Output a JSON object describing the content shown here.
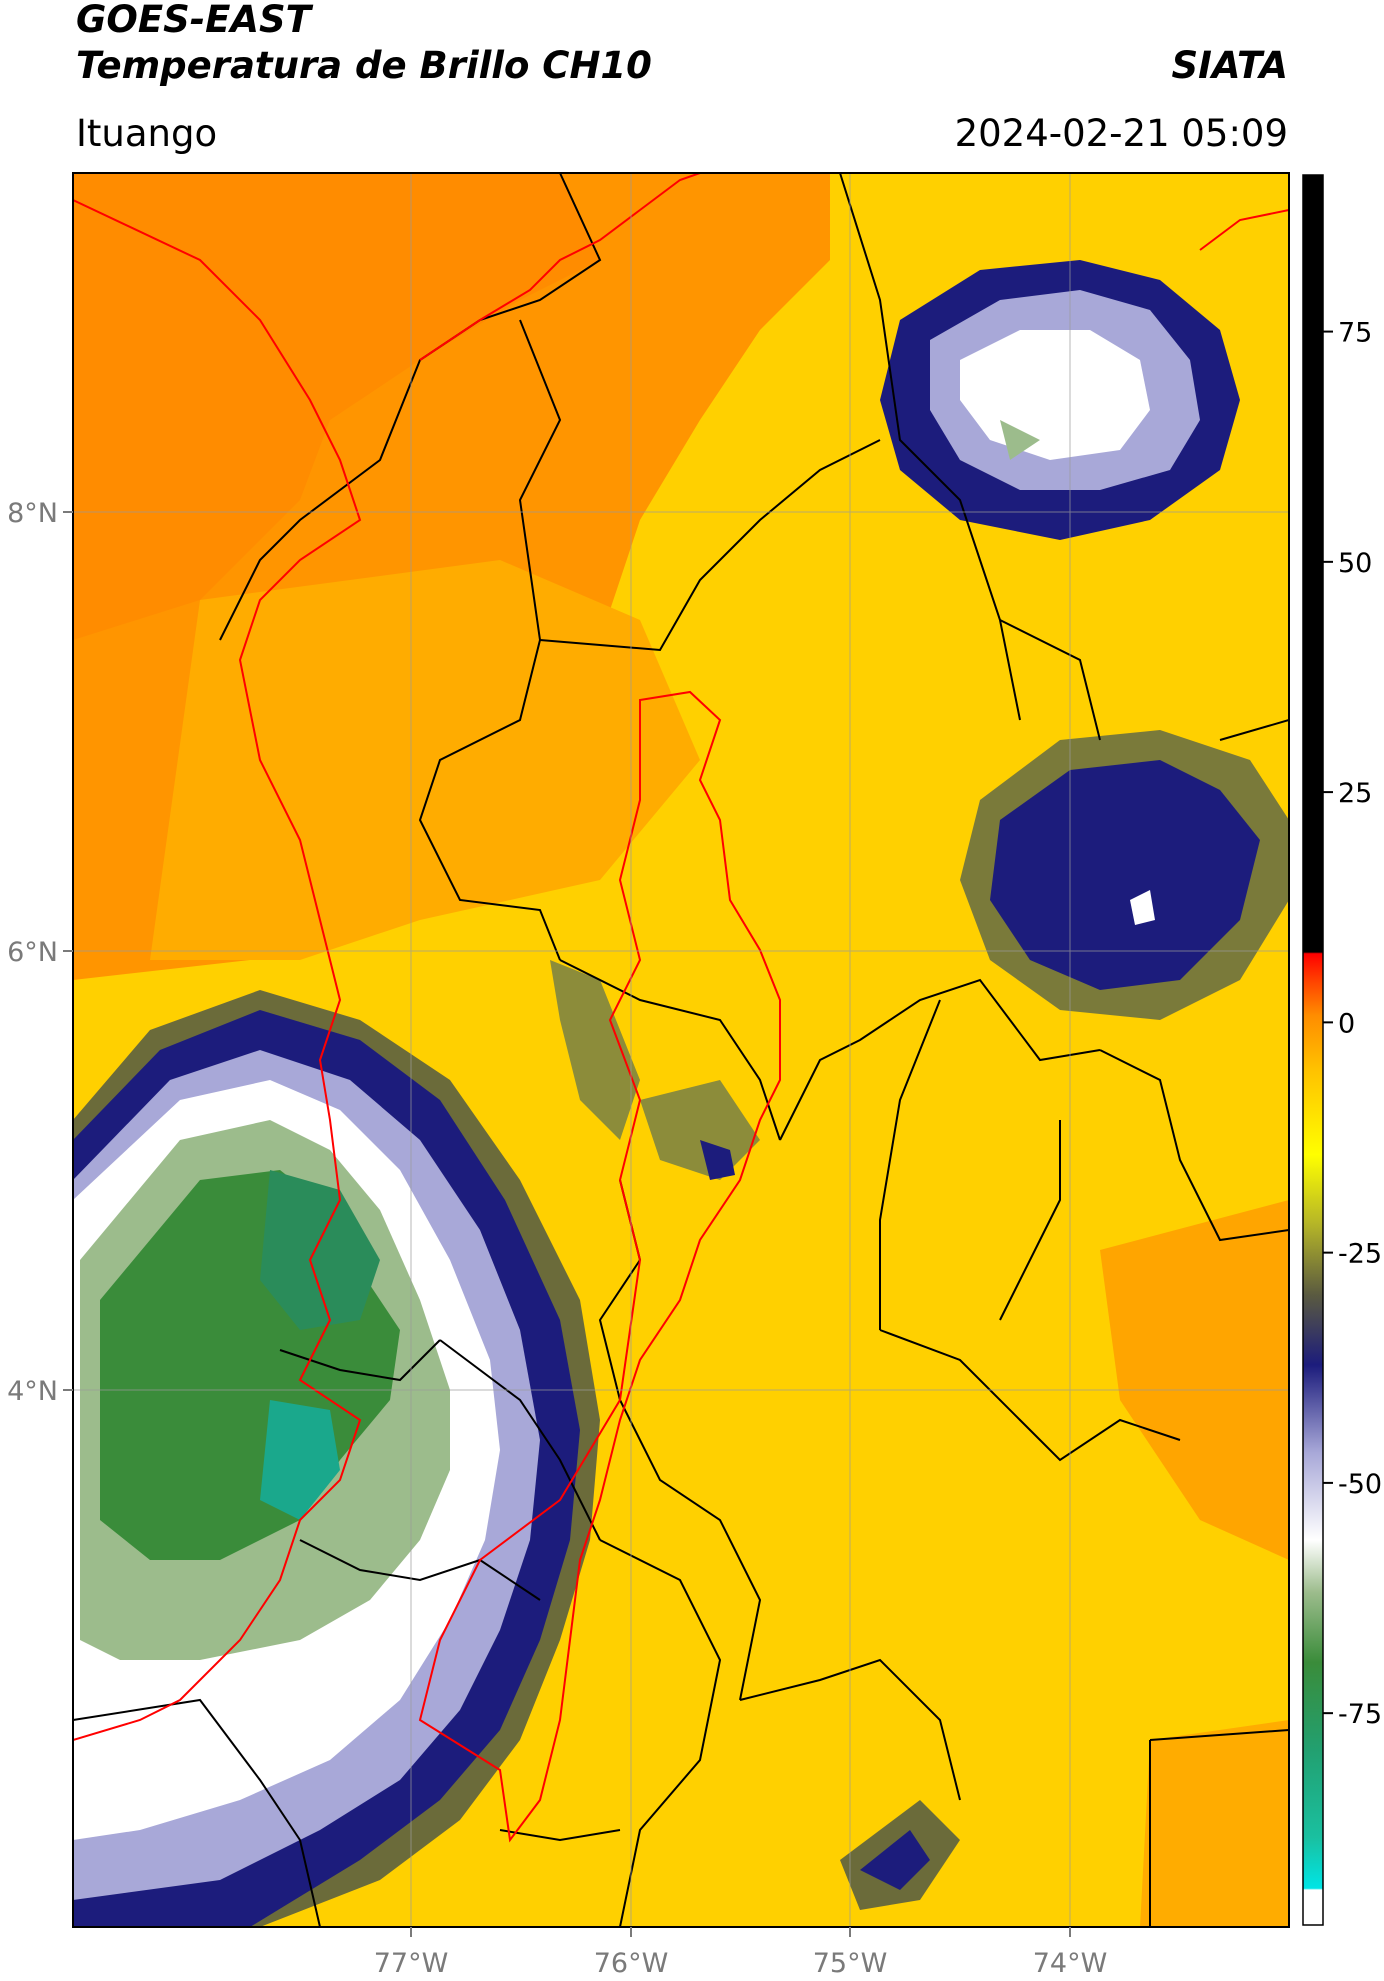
{
  "header": {
    "satellite": "GOES-EAST",
    "product": "Temperatura de Brillo CH10",
    "organization": "SIATA",
    "location": "Ituango",
    "datetime": "2024-02-21 05:09"
  },
  "map": {
    "lon_labels": [
      "77°W",
      "76°W",
      "75°W",
      "74°W"
    ],
    "lat_labels": [
      "8°N",
      "6°N",
      "4°N"
    ],
    "lon_range": [
      -78.55,
      -73.0
    ],
    "lat_range": [
      1.55,
      9.55
    ],
    "colors": {
      "warm_orange": "#ff8c00",
      "orange": "#ffa500",
      "yellow": "#ffe000",
      "olive": "#8c8c3a",
      "navy": "#1c1c7c",
      "lavender": "#a8a8d8",
      "white": "#ffffff",
      "green": "#3a8c3a",
      "teal": "#1aa88c",
      "watershed_outline": "#ff0000",
      "border": "#000000"
    }
  },
  "colorbar": {
    "tick_labels": [
      "75",
      "50",
      "25",
      "0",
      "-25",
      "-50",
      "-75"
    ],
    "tick_values": [
      75,
      50,
      25,
      0,
      -25,
      -50,
      -75
    ],
    "range": [
      -98,
      92
    ]
  }
}
